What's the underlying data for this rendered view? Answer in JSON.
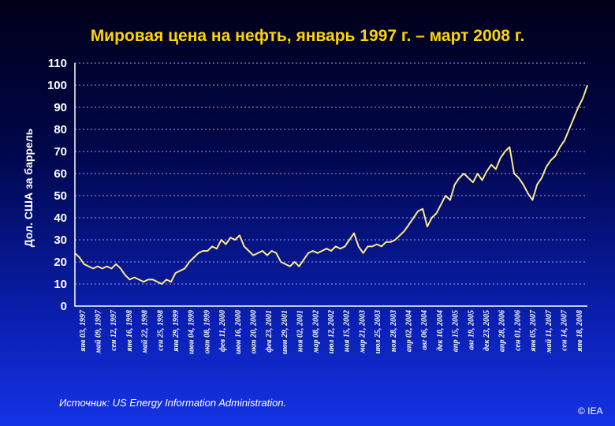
{
  "chart_data": {
    "type": "line",
    "title": "Мировая цена на нефть, январь 1997 г. – март 2008 г.",
    "ylabel": "Дол. США за баррель",
    "xlabel": "",
    "ylim": [
      0,
      110
    ],
    "yticks": [
      0,
      10,
      20,
      30,
      40,
      50,
      60,
      70,
      80,
      90,
      100,
      110
    ],
    "grid": "horizontal dotted",
    "x_tick_labels": [
      "янв 03, 1997",
      "май 09, 1997",
      "сен 12, 1997",
      "янв 16, 1998",
      "май 22, 1998",
      "сен 25, 1998",
      "янв 29, 1999",
      "июн 04, 1999",
      "окт 08, 1999",
      "фев 11, 2000",
      "июн 16, 2000",
      "окт 20, 2000",
      "фев 23, 2001",
      "июн 29, 2001",
      "ноя 02, 2001",
      "мар 08, 2002",
      "июл 12, 2002",
      "ноя 15, 2002",
      "мар 21, 2003",
      "июл 25, 2003",
      "ноя 28, 2003",
      "апр 02, 2004",
      "авг 06, 2004",
      "дек 10, 2004",
      "апр 15, 2005",
      "авг 19, 2005",
      "дек 23, 2005",
      "апр 28, 2006",
      "сен 01, 2006",
      "янв 05, 2007",
      "май 11, 2007",
      "сен 14, 2007",
      "янв 18, 2008"
    ],
    "series": [
      {
        "color": "#ffe88c",
        "x": [
          1997.0,
          1997.1,
          1997.2,
          1997.3,
          1997.4,
          1997.5,
          1997.6,
          1997.7,
          1997.8,
          1997.9,
          1998.0,
          1998.1,
          1998.2,
          1998.3,
          1998.4,
          1998.5,
          1998.6,
          1998.7,
          1998.8,
          1998.9,
          1999.0,
          1999.1,
          1999.2,
          1999.3,
          1999.4,
          1999.5,
          1999.6,
          1999.7,
          1999.8,
          1999.9,
          2000.0,
          2000.1,
          2000.2,
          2000.3,
          2000.4,
          2000.5,
          2000.6,
          2000.7,
          2000.8,
          2000.9,
          2001.0,
          2001.1,
          2001.2,
          2001.3,
          2001.4,
          2001.5,
          2001.6,
          2001.7,
          2001.8,
          2001.9,
          2002.0,
          2002.1,
          2002.2,
          2002.3,
          2002.4,
          2002.5,
          2002.6,
          2002.7,
          2002.8,
          2002.9,
          2003.0,
          2003.1,
          2003.2,
          2003.3,
          2003.4,
          2003.5,
          2003.6,
          2003.7,
          2003.8,
          2003.9,
          2004.0,
          2004.1,
          2004.2,
          2004.3,
          2004.4,
          2004.5,
          2004.6,
          2004.7,
          2004.8,
          2004.9,
          2005.0,
          2005.1,
          2005.2,
          2005.3,
          2005.4,
          2005.5,
          2005.6,
          2005.7,
          2005.8,
          2005.9,
          2006.0,
          2006.1,
          2006.2,
          2006.3,
          2006.4,
          2006.5,
          2006.6,
          2006.7,
          2006.8,
          2006.9,
          2007.0,
          2007.1,
          2007.2,
          2007.3,
          2007.4,
          2007.5,
          2007.6,
          2007.7,
          2007.8,
          2007.9,
          2008.0,
          2008.1,
          2008.2
        ],
        "y": [
          24,
          22,
          19,
          18,
          17,
          18,
          17,
          18,
          17,
          19,
          17,
          14,
          12,
          13,
          12,
          11,
          12,
          12,
          11,
          10,
          12,
          11,
          15,
          16,
          17,
          20,
          22,
          24,
          25,
          25,
          27,
          26,
          30,
          28,
          31,
          30,
          32,
          27,
          25,
          23,
          24,
          25,
          23,
          25,
          24,
          20,
          19,
          18,
          20,
          18,
          21,
          24,
          25,
          24,
          25,
          26,
          25,
          27,
          26,
          27,
          30,
          33,
          27,
          24,
          27,
          27,
          28,
          27,
          29,
          29,
          30,
          32,
          34,
          37,
          40,
          43,
          44,
          36,
          40,
          42,
          46,
          50,
          48,
          55,
          58,
          60,
          58,
          56,
          60,
          57,
          61,
          64,
          62,
          67,
          70,
          72,
          60,
          58,
          55,
          51,
          48,
          55,
          58,
          63,
          66,
          68,
          72,
          75,
          80,
          85,
          90,
          94,
          100
        ]
      }
    ],
    "source": "Источник: US Energy Information Administration.",
    "copyright": "© IEA"
  }
}
